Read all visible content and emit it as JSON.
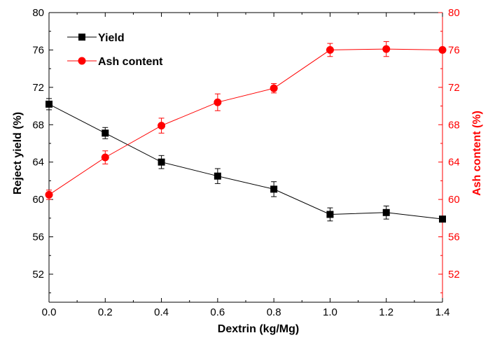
{
  "chart_data": {
    "type": "line",
    "title": "",
    "xlabel": "Dextrin  (kg/Mg)",
    "ylabel_left": "Reject yield (%)",
    "ylabel_right": "Ash content (%)",
    "xlim": [
      0.0,
      1.4
    ],
    "ylim_left": [
      49,
      80
    ],
    "ylim_right": [
      49,
      80
    ],
    "x_ticks": [
      "0.0",
      "0.2",
      "0.4",
      "0.6",
      "0.8",
      "1.0",
      "1.2",
      "1.4"
    ],
    "y_ticks_left": [
      "52",
      "56",
      "60",
      "64",
      "68",
      "72",
      "76",
      "80"
    ],
    "y_ticks_right": [
      "52",
      "56",
      "60",
      "64",
      "68",
      "72",
      "76",
      "80"
    ],
    "grid": false,
    "legend_position": "top-left",
    "series": [
      {
        "name": "Yield",
        "axis": "left",
        "color": "#000000",
        "marker": "square",
        "x": [
          0.0,
          0.2,
          0.4,
          0.6,
          0.8,
          1.0,
          1.2,
          1.4
        ],
        "y": [
          70.2,
          67.1,
          64.0,
          62.5,
          61.1,
          58.4,
          58.6,
          57.9
        ],
        "error": [
          0.6,
          0.6,
          0.7,
          0.8,
          0.8,
          0.7,
          0.7,
          0.0
        ]
      },
      {
        "name": "Ash content",
        "axis": "right",
        "color": "#ff0000",
        "marker": "circle",
        "x": [
          0.0,
          0.2,
          0.4,
          0.6,
          0.8,
          1.0,
          1.2,
          1.4
        ],
        "y": [
          60.5,
          64.5,
          67.9,
          70.4,
          71.9,
          76.0,
          76.1,
          76.0
        ],
        "error": [
          0.5,
          0.7,
          0.8,
          0.9,
          0.5,
          0.7,
          0.8,
          0.0
        ]
      }
    ]
  }
}
